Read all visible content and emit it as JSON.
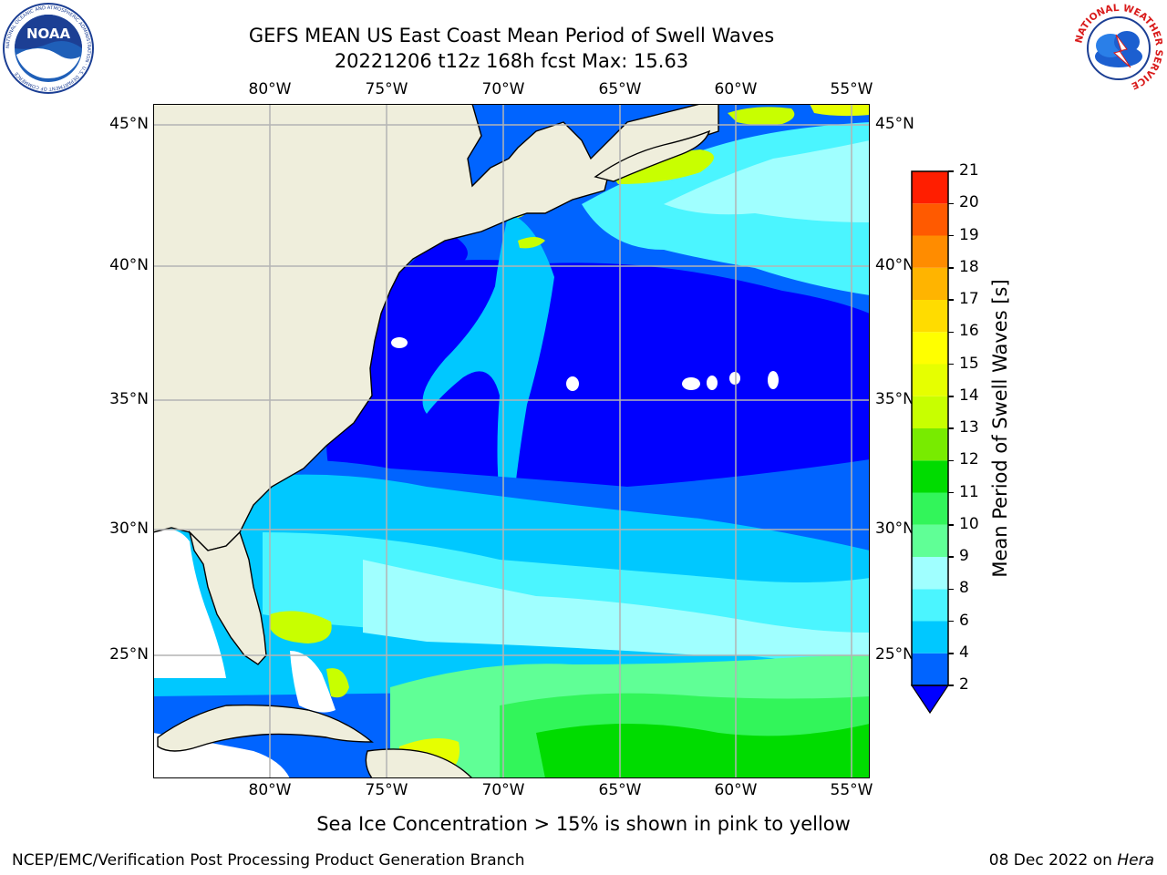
{
  "header": {
    "title_line1": "GEFS MEAN US East Coast Mean Period of Swell Waves",
    "title_line2": "20221206 t12z 168h fcst   Max: 15.63"
  },
  "logos": {
    "left": {
      "name": "noaa-logo",
      "text": "NOAA",
      "ring_text": "NATIONAL OCEANIC AND ATMOSPHERIC ADMINISTRATION · U.S. DEPARTMENT OF COMMERCE"
    },
    "right": {
      "name": "nws-logo",
      "ring_text": "NATIONAL WEATHER SERVICE"
    }
  },
  "map": {
    "lon_labels": [
      "80°W",
      "75°W",
      "70°W",
      "65°W",
      "60°W",
      "55°W"
    ],
    "lat_labels": [
      "45°N",
      "40°N",
      "35°N",
      "30°N",
      "25°N"
    ],
    "grid": true,
    "colors": {
      "land": "#efeedc",
      "coast": "#000000",
      "grid": "#b4b4b4",
      "missing": "#ffffff"
    }
  },
  "colorbar": {
    "label": "Mean Period of Swell Waves [s]",
    "ticks": [
      "2",
      "4",
      "6",
      "8",
      "9",
      "10",
      "11",
      "12",
      "13",
      "14",
      "15",
      "16",
      "17",
      "18",
      "19",
      "20",
      "21"
    ],
    "colors": [
      "#0064ff",
      "#00c8ff",
      "#4bf5ff",
      "#a0ffff",
      "#60ff96",
      "#32f55a",
      "#00dc00",
      "#78eb00",
      "#c8ff00",
      "#e6ff00",
      "#ffff00",
      "#ffdc00",
      "#ffb400",
      "#ff8c00",
      "#ff5a00",
      "#ff1e00"
    ],
    "under_color": "#0000ff",
    "extend": "min"
  },
  "subtitle": "Sea Ice Concentration > 15% is shown in pink to yellow",
  "footer": {
    "left": "NCEP/EMC/Verification Post Processing Product Generation Branch",
    "right_date": "08 Dec 2022 on ",
    "right_host": "Hera"
  }
}
